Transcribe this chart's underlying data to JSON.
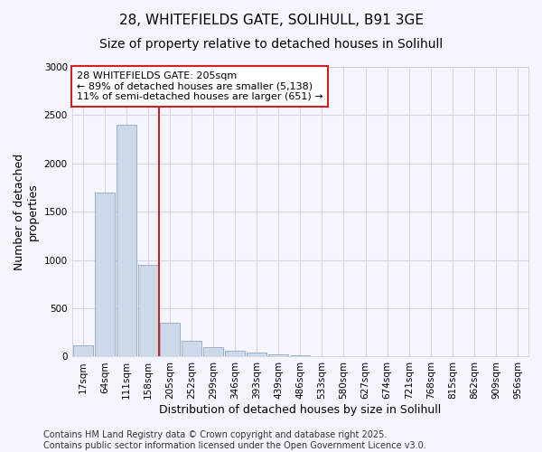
{
  "title_line1": "28, WHITEFIELDS GATE, SOLIHULL, B91 3GE",
  "title_line2": "Size of property relative to detached houses in Solihull",
  "xlabel": "Distribution of detached houses by size in Solihull",
  "ylabel": "Number of detached\nproperties",
  "annotation_title": "28 WHITEFIELDS GATE: 205sqm",
  "annotation_line2": "← 89% of detached houses are smaller (5,138)",
  "annotation_line3": "11% of semi-detached houses are larger (651) →",
  "footer_line1": "Contains HM Land Registry data © Crown copyright and database right 2025.",
  "footer_line2": "Contains public sector information licensed under the Open Government Licence v3.0.",
  "categories": [
    "17sqm",
    "64sqm",
    "111sqm",
    "158sqm",
    "205sqm",
    "252sqm",
    "299sqm",
    "346sqm",
    "393sqm",
    "439sqm",
    "486sqm",
    "533sqm",
    "580sqm",
    "627sqm",
    "674sqm",
    "721sqm",
    "768sqm",
    "815sqm",
    "862sqm",
    "909sqm",
    "956sqm"
  ],
  "values": [
    120,
    1700,
    2400,
    950,
    350,
    160,
    100,
    65,
    45,
    20,
    12,
    5,
    3,
    0,
    0,
    0,
    0,
    0,
    0,
    0,
    0
  ],
  "bar_color": "#ccd9e8",
  "bar_edgecolor": "#9ab0c8",
  "highlight_index": 4,
  "highlight_color": "#cc2222",
  "vline_x": 3.5,
  "vline_color": "#cc2222",
  "ylim": [
    0,
    3000
  ],
  "yticks": [
    0,
    500,
    1000,
    1500,
    2000,
    2500,
    3000
  ],
  "grid_color": "#d0d8e8",
  "background_color": "#f5f5ff",
  "annotation_box_color": "#ffffff",
  "annotation_box_edgecolor": "#cc2222",
  "title_fontsize": 11,
  "subtitle_fontsize": 10,
  "axis_label_fontsize": 9,
  "tick_fontsize": 7.5,
  "annotation_fontsize": 8,
  "footer_fontsize": 7
}
